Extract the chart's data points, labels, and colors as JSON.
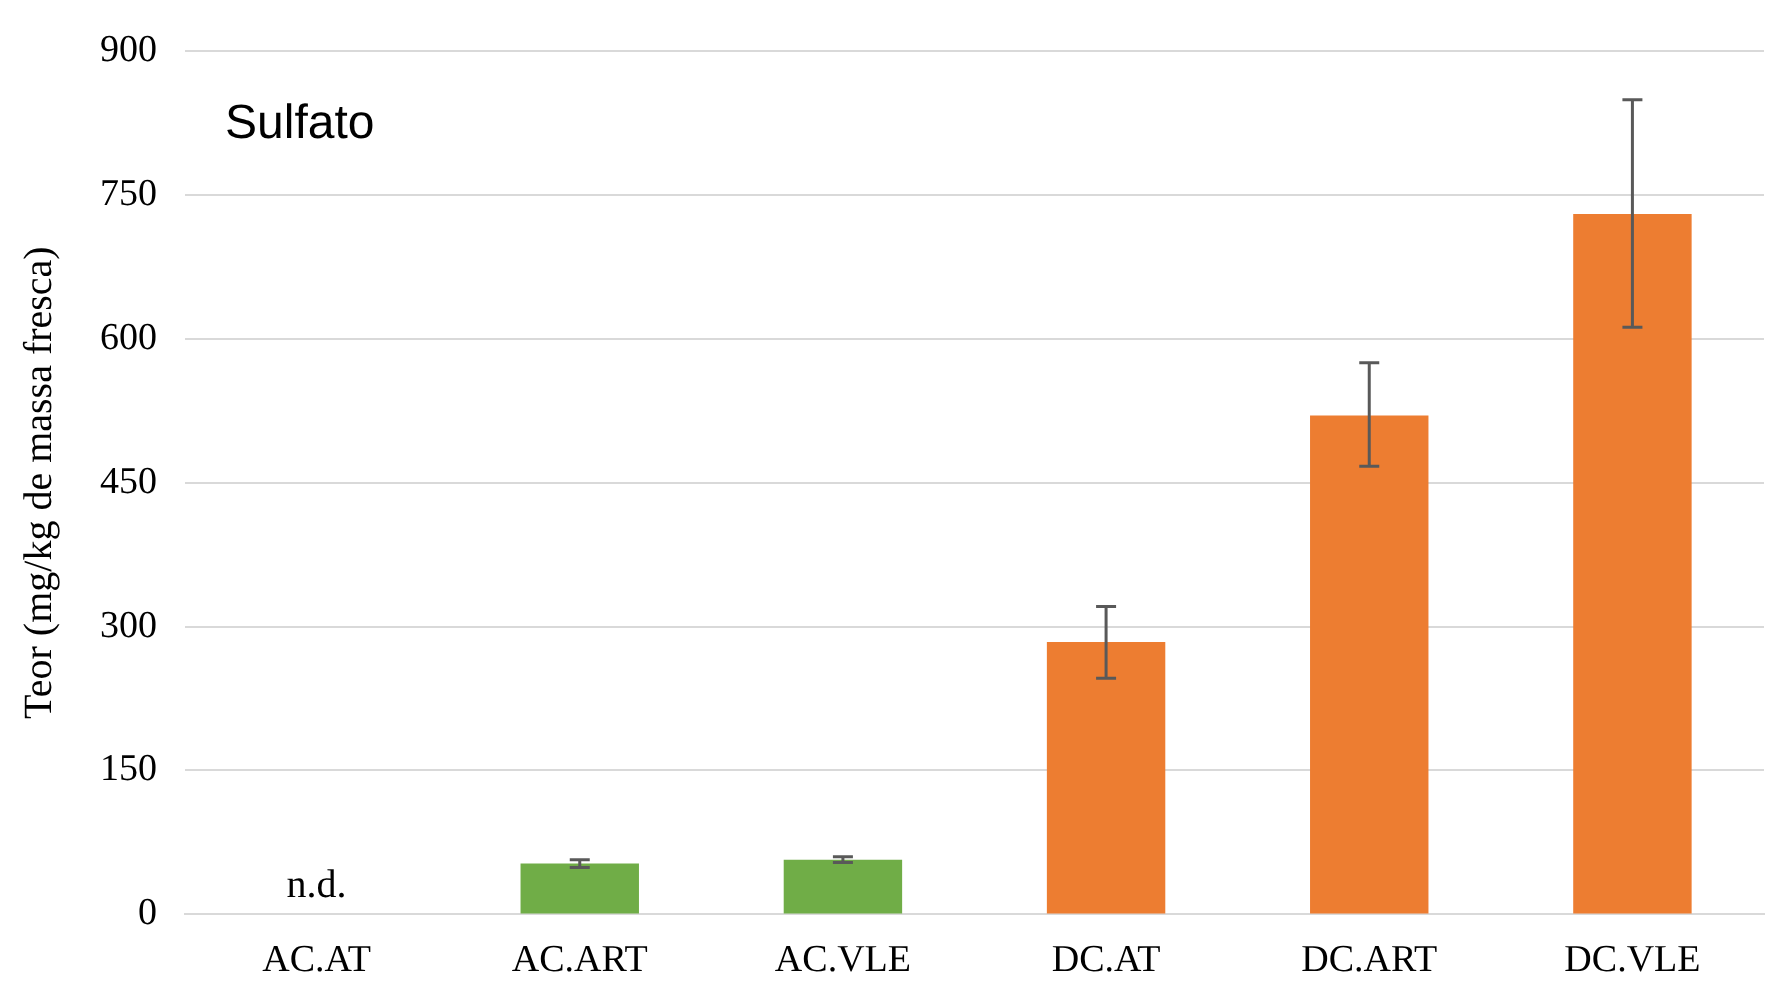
{
  "chart_data": {
    "type": "bar",
    "title": "Sulfato",
    "ylabel": "Teor (mg/kg de massa fresca)",
    "categories": [
      "AC.AT",
      "AC.ART",
      "AC.VLE",
      "DC.AT",
      "DC.ART",
      "DC.VLE"
    ],
    "values": [
      null,
      53,
      57,
      284,
      520,
      730
    ],
    "colors": [
      "#70ad47",
      "#70ad47",
      "#70ad47",
      "#ed7d31",
      "#ed7d31",
      "#ed7d31"
    ],
    "errors": [
      null,
      [
        49,
        57
      ],
      [
        54,
        60
      ],
      [
        246,
        321
      ],
      [
        467,
        575
      ],
      [
        612,
        849
      ]
    ],
    "ylim": [
      0,
      900
    ],
    "yticks": [
      0,
      150,
      300,
      450,
      600,
      750,
      900
    ],
    "grid": "y",
    "legend": false,
    "annotations": [
      "n.d."
    ]
  }
}
